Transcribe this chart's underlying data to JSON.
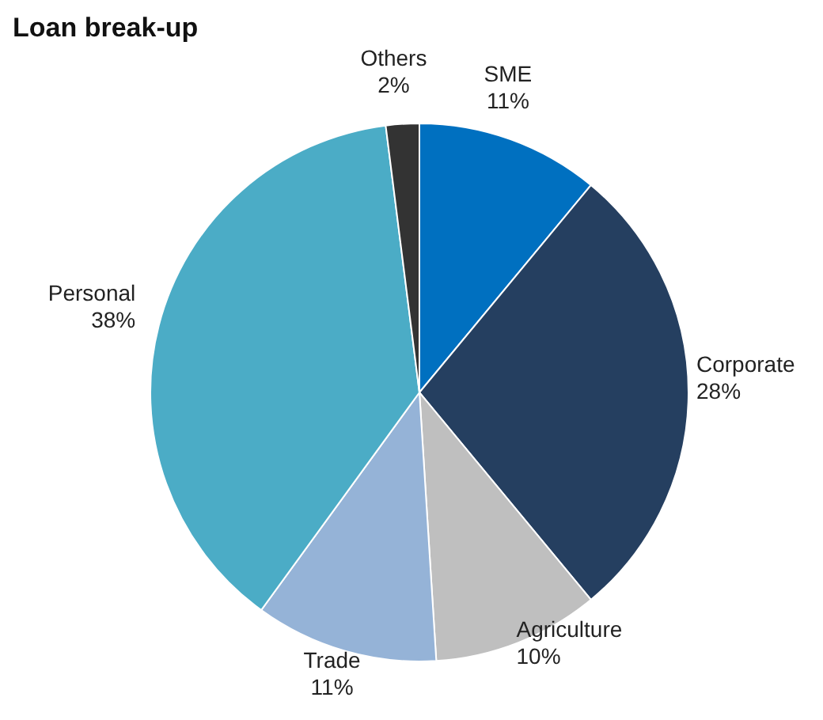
{
  "chart_data": {
    "type": "pie",
    "title": "Loan break-up",
    "categories": [
      "SME",
      "Corporate",
      "Agriculture",
      "Trade",
      "Personal",
      "Others"
    ],
    "values": [
      11,
      28,
      10,
      11,
      38,
      2
    ],
    "value_labels": [
      "11%",
      "28%",
      "10%",
      "11%",
      "38%",
      "2%"
    ],
    "colors": [
      "#0070c0",
      "#253f60",
      "#bfbfbf",
      "#95b3d7",
      "#4bacc6",
      "#333333"
    ],
    "legend": false
  }
}
